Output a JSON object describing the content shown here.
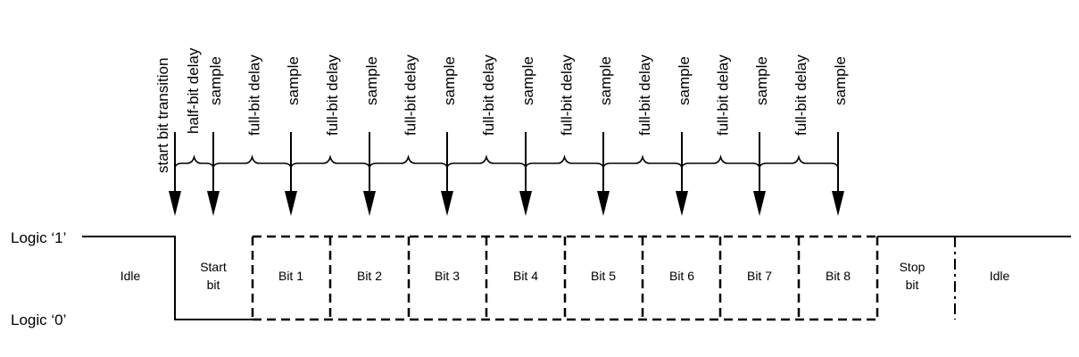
{
  "logic_levels": {
    "high": "Logic ‘1’",
    "low": "Logic ‘0’"
  },
  "timing_labels": {
    "start_transition": "start bit transition",
    "half_delay": "half-bit delay",
    "full_delay": "full-bit delay",
    "sample": "sample"
  },
  "cells": [
    {
      "lines": [
        "Idle"
      ]
    },
    {
      "lines": [
        "Start",
        "bit"
      ]
    },
    {
      "lines": [
        "Bit 1"
      ]
    },
    {
      "lines": [
        "Bit 2"
      ]
    },
    {
      "lines": [
        "Bit 3"
      ]
    },
    {
      "lines": [
        "Bit 4"
      ]
    },
    {
      "lines": [
        "Bit 5"
      ]
    },
    {
      "lines": [
        "Bit 6"
      ]
    },
    {
      "lines": [
        "Bit 7"
      ]
    },
    {
      "lines": [
        "Bit 8"
      ]
    },
    {
      "lines": [
        "Stop",
        "bit"
      ]
    },
    {
      "lines": [
        "Idle"
      ]
    }
  ],
  "colors": {
    "line": "#000000",
    "background": "#ffffff"
  }
}
